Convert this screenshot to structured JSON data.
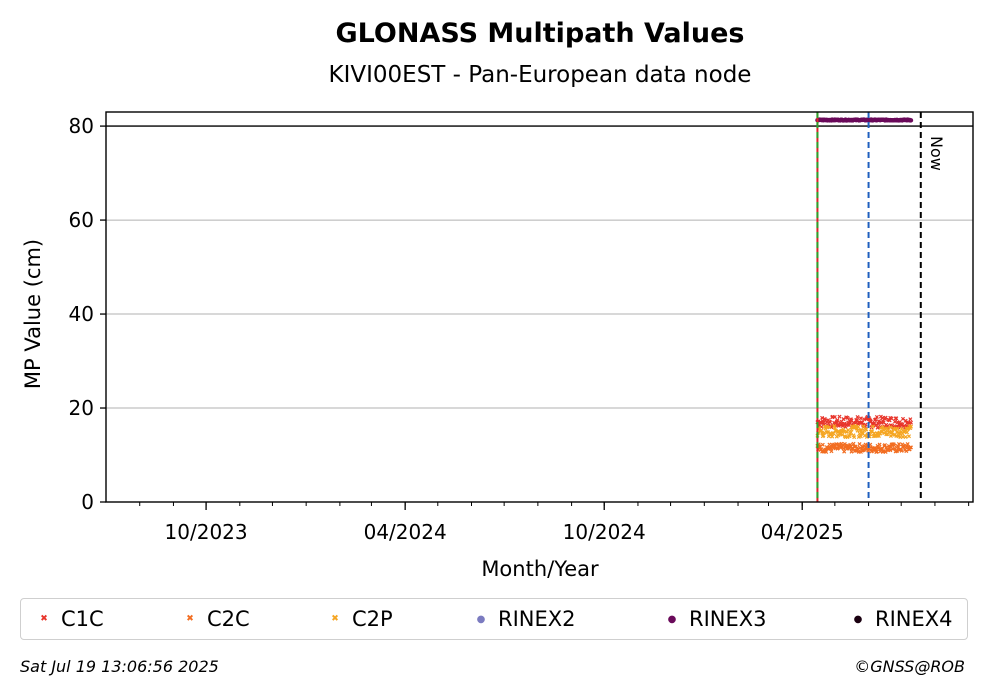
{
  "chart_data": {
    "type": "scatter",
    "title": "GLONASS Multipath Values",
    "subtitle": "KIVI00EST - Pan-European data node",
    "xlabel": "Month/Year",
    "ylabel": "MP Value (cm)",
    "ylim": [
      0,
      83
    ],
    "xlim": [
      "2023-07-01",
      "2025-09-05"
    ],
    "yticks": [
      0,
      20,
      40,
      60,
      80
    ],
    "xticks": [
      {
        "label": "10/2023",
        "date": "2023-10-01"
      },
      {
        "label": "04/2024",
        "date": "2024-04-01"
      },
      {
        "label": "10/2024",
        "date": "2024-10-01"
      },
      {
        "label": "04/2025",
        "date": "2025-04-01"
      }
    ],
    "grid": "horizontal",
    "threshold_line": 80,
    "vlines": [
      {
        "date": "2025-04-15",
        "color": "#d62728",
        "style": "solid"
      },
      {
        "date": "2025-04-15",
        "color": "#2ca02c",
        "style": "dashed"
      },
      {
        "date": "2025-06-01",
        "color": "#1f5fbf",
        "style": "dashed"
      },
      {
        "date": "2025-07-19",
        "color": "#000000",
        "style": "dashed",
        "label": "Now"
      }
    ],
    "series": [
      {
        "name": "C1C",
        "color": "#e8352b",
        "marker": "x",
        "start": "2025-04-15",
        "end": "2025-07-10",
        "mean": 17,
        "jitter": 1.2
      },
      {
        "name": "C2C",
        "color": "#f26d21",
        "marker": "x",
        "start": "2025-04-15",
        "end": "2025-07-10",
        "mean": 11.5,
        "jitter": 0.9
      },
      {
        "name": "C2P",
        "color": "#f5a623",
        "marker": "x",
        "start": "2025-04-15",
        "end": "2025-07-10",
        "mean": 15,
        "jitter": 1.2
      },
      {
        "name": "RINEX2",
        "color": "#7b7bc0",
        "marker": "dot"
      },
      {
        "name": "RINEX3",
        "color": "#6a0a5a",
        "marker": "dot",
        "start": "2025-04-15",
        "end": "2025-07-10",
        "mean": 81.3,
        "jitter": 0.1
      },
      {
        "name": "RINEX4",
        "color": "#1a0010",
        "marker": "dot"
      }
    ],
    "legend": "bottom"
  },
  "footer": {
    "timestamp": "Sat Jul 19 13:06:56 2025",
    "credit": "©GNSS@ROB"
  }
}
